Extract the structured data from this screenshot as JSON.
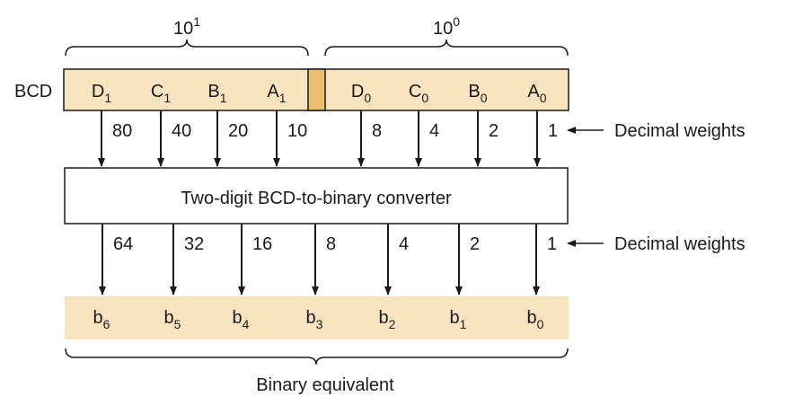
{
  "groups": {
    "tens": {
      "base": "10",
      "exp": "1"
    },
    "units": {
      "base": "10",
      "exp": "0"
    }
  },
  "bcd_label": "BCD",
  "bcd_inputs": [
    {
      "letter": "D",
      "sub": "1",
      "weight": "80"
    },
    {
      "letter": "C",
      "sub": "1",
      "weight": "40"
    },
    {
      "letter": "B",
      "sub": "1",
      "weight": "20"
    },
    {
      "letter": "A",
      "sub": "1",
      "weight": "10"
    },
    {
      "letter": "D",
      "sub": "0",
      "weight": "8"
    },
    {
      "letter": "C",
      "sub": "0",
      "weight": "4"
    },
    {
      "letter": "B",
      "sub": "0",
      "weight": "2"
    },
    {
      "letter": "A",
      "sub": "0",
      "weight": "1"
    }
  ],
  "converter_label": "Two-digit BCD-to-binary converter",
  "binary_outputs": [
    {
      "letter": "b",
      "sub": "6",
      "weight": "64"
    },
    {
      "letter": "b",
      "sub": "5",
      "weight": "32"
    },
    {
      "letter": "b",
      "sub": "4",
      "weight": "16"
    },
    {
      "letter": "b",
      "sub": "3",
      "weight": "8"
    },
    {
      "letter": "b",
      "sub": "2",
      "weight": "4"
    },
    {
      "letter": "b",
      "sub": "1",
      "weight": "2"
    },
    {
      "letter": "b",
      "sub": "0",
      "weight": "1"
    }
  ],
  "weights_label_top": "Decimal weights",
  "weights_label_bottom": "Decimal weights",
  "binary_label": "Binary equivalent",
  "colors": {
    "register_fill": "#f7e3bd",
    "separator_fill": "#e7bf6e",
    "output_fill": "#f7e3bd",
    "stroke": "#1a1a1a"
  }
}
